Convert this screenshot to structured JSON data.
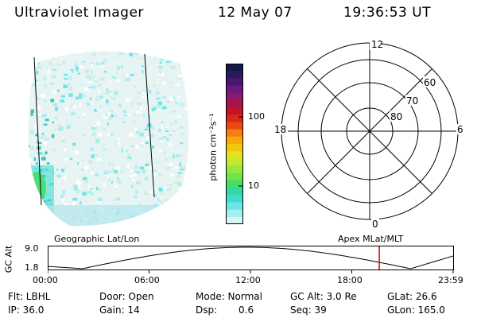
{
  "header": {
    "title": "Ultraviolet Imager",
    "date": "12 May 07",
    "time": "19:36:53 UT"
  },
  "colorbar": {
    "unit": "photon cm⁻²s⁻¹",
    "tick_100": "100",
    "tick_10": "10",
    "colors": [
      "#111a4a",
      "#2a1a5c",
      "#4a1670",
      "#6a1a80",
      "#8a1a6e",
      "#a8124e",
      "#c41428",
      "#d8281a",
      "#ea4a12",
      "#f57e0e",
      "#f9a80a",
      "#f2c80c",
      "#e4e220",
      "#c2e830",
      "#98e83c",
      "#6ce44a",
      "#46dc6a",
      "#36d6a6",
      "#40dcd2",
      "#6ae6e8",
      "#a2eef0",
      "#d6f6f8"
    ]
  },
  "polar": {
    "labels": {
      "top": "12",
      "bottom": "0",
      "left": "18",
      "right": "6"
    },
    "lat_labels": [
      "60",
      "70",
      "80"
    ]
  },
  "timeline": {
    "left_title": "Geographic Lat/Lon",
    "right_title": "Apex MLat/MLT",
    "axis_label": "GC Alt",
    "y_max": "9.0",
    "y_min": "1.8",
    "ticks": [
      "00:00",
      "06:00",
      "12:00",
      "18:00",
      "23:59"
    ],
    "marker_time": "19:36:53",
    "marker_color": "#dd0000"
  },
  "info": {
    "filter": "Flt: LBHL",
    "door": "Door: Open",
    "mode": "Mode: Normal",
    "gc_alt": "GC Alt: 3.0 Re",
    "glat": "GLat:  26.6",
    "ip": "IP: 36.0",
    "gain": "Gain: 14",
    "dsp_label": "Dsp:",
    "dsp_value": "0.6",
    "seq": "Seq: 39",
    "glon": "GLon: 165.0"
  }
}
